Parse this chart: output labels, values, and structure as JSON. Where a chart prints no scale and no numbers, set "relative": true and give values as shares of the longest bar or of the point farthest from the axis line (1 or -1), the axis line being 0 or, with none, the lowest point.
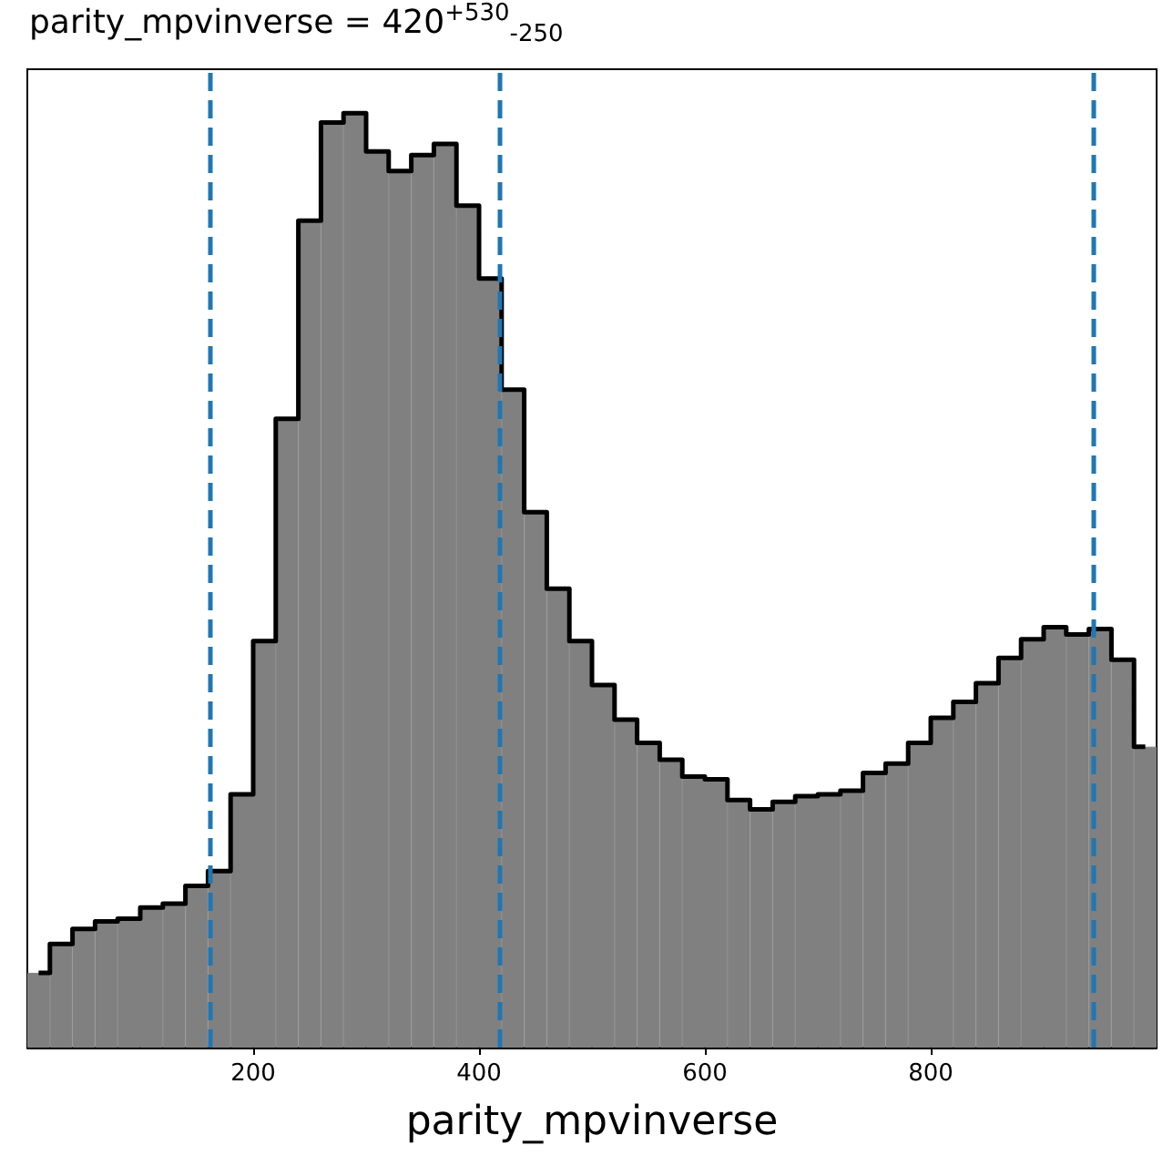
{
  "chart_data": {
    "type": "bar",
    "title": "parity_mpvinverse = 420$^{+530}$$_{-250}$",
    "xlabel": "parity_mpvinverse",
    "relative": true,
    "x": [
      10,
      30,
      50,
      70,
      90,
      110,
      130,
      150,
      170,
      190,
      210,
      230,
      250,
      270,
      290,
      310,
      330,
      350,
      370,
      390,
      410,
      430,
      450,
      470,
      490,
      510,
      530,
      550,
      570,
      590,
      610,
      630,
      650,
      670,
      690,
      710,
      730,
      750,
      770,
      790,
      810,
      830,
      850,
      870,
      890,
      910,
      930,
      950,
      970,
      990
    ],
    "series": [
      {
        "color": "#808080",
        "values": [
          0.08,
          0.111,
          0.127,
          0.135,
          0.138,
          0.15,
          0.154,
          0.173,
          0.189,
          0.271,
          0.435,
          0.673,
          0.885,
          0.99,
          1,
          0.959,
          0.938,
          0.955,
          0.967,
          0.901,
          0.823,
          0.704,
          0.573,
          0.491,
          0.435,
          0.388,
          0.351,
          0.326,
          0.308,
          0.29,
          0.287,
          0.265,
          0.255,
          0.263,
          0.269,
          0.271,
          0.275,
          0.294,
          0.304,
          0.326,
          0.353,
          0.37,
          0.39,
          0.417,
          0.437,
          0.45,
          0.442,
          0.448,
          0.415,
          0.322
        ]
      },
      {
        "type": "step",
        "color": "#000000",
        "values": [
          0.08,
          0.111,
          0.127,
          0.135,
          0.138,
          0.15,
          0.154,
          0.173,
          0.189,
          0.271,
          0.435,
          0.673,
          0.885,
          0.99,
          1,
          0.959,
          0.938,
          0.955,
          0.967,
          0.901,
          0.823,
          0.704,
          0.573,
          0.491,
          0.435,
          0.388,
          0.351,
          0.326,
          0.308,
          0.29,
          0.287,
          0.265,
          0.255,
          0.263,
          0.269,
          0.271,
          0.275,
          0.294,
          0.304,
          0.326,
          0.353,
          0.37,
          0.39,
          0.417,
          0.437,
          0.45,
          0.442,
          0.448,
          0.415,
          0.322
        ]
      }
    ],
    "xlim": [
      0,
      1000
    ],
    "xticks": [
      200,
      400,
      600,
      800
    ],
    "ref_lines": [
      {
        "axis": "x",
        "value": 162,
        "color": "#1f77b4",
        "line_style": "dashed"
      },
      {
        "axis": "x",
        "value": 418,
        "color": "#1f77b4",
        "line_style": "dashed"
      },
      {
        "axis": "x",
        "value": 944,
        "color": "#1f77b4",
        "line_style": "dashed"
      }
    ]
  }
}
